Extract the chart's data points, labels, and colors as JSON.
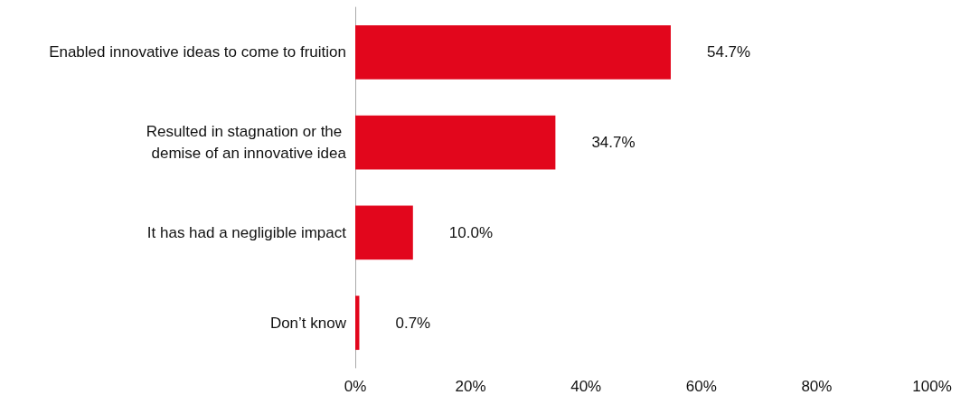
{
  "chart_data": {
    "type": "bar",
    "orientation": "horizontal",
    "categories": [
      "Enabled innovative ideas to come to fruition",
      "Resulted in stagnation or the \ndemise of an innovative idea",
      "It has had a negligible impact",
      "Don’t know"
    ],
    "values": [
      54.7,
      34.7,
      10.0,
      0.7
    ],
    "value_labels": [
      "54.7%",
      "34.7%",
      "10.0%",
      "0.7%"
    ],
    "color": "#e2061c",
    "xlim": [
      0,
      100
    ],
    "xticks": [
      {
        "value": 0,
        "label": "0%"
      },
      {
        "value": 20,
        "label": "20%"
      },
      {
        "value": 40,
        "label": "40%"
      },
      {
        "value": 60,
        "label": "60%"
      },
      {
        "value": 80,
        "label": "80%"
      },
      {
        "value": 100,
        "label": "100%"
      }
    ],
    "grid": false
  }
}
